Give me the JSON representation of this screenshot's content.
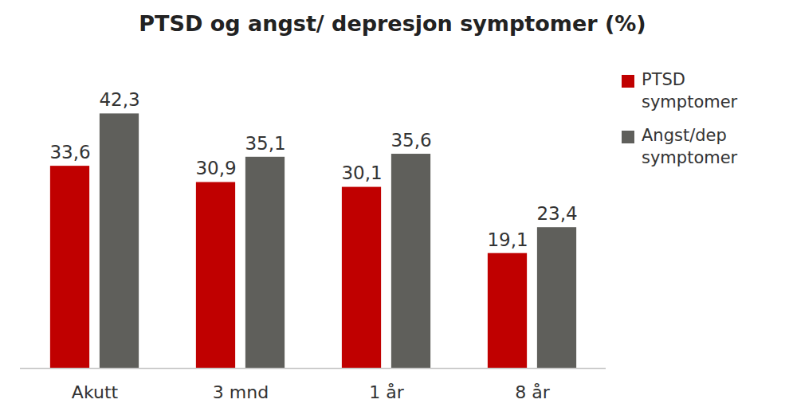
{
  "chart_data": {
    "type": "bar",
    "title": "PTSD og angst/ depresjon symptomer (%)",
    "categories": [
      "Akutt",
      "3 mnd",
      "1 år",
      "8 år"
    ],
    "series": [
      {
        "name": "PTSD symptomer",
        "color": "#c00000",
        "values": [
          33.6,
          30.9,
          30.1,
          19.1
        ],
        "value_labels": [
          "33,6",
          "30,9",
          "30,1",
          "19,1"
        ]
      },
      {
        "name": "Angst/dep symptomer",
        "color": "#5f5f5b",
        "values": [
          42.3,
          35.1,
          35.6,
          23.4
        ],
        "value_labels": [
          "42,3",
          "35,1",
          "35,6",
          "23,4"
        ]
      }
    ],
    "ylim": [
      0,
      45
    ],
    "tick_labels": "x",
    "data_labels": true,
    "legend": "top-right",
    "grid": false
  }
}
